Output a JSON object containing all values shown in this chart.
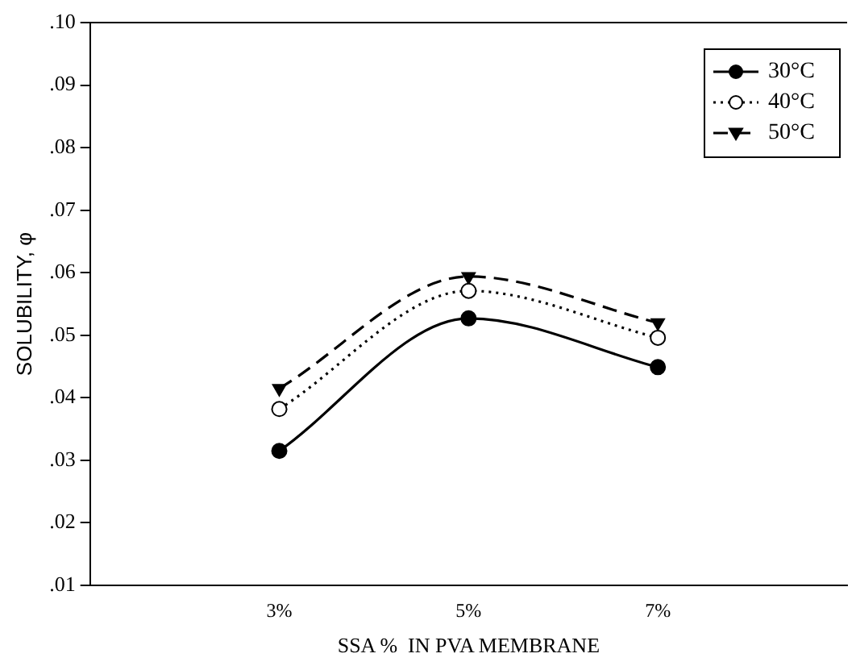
{
  "chart_data": {
    "type": "line",
    "xlabel": "SSA %  IN PVA MEMBRANE",
    "ylabel": "SOLUBILITY, φ",
    "x": [
      3,
      5,
      7
    ],
    "xlim": [
      1,
      9
    ],
    "xticks": [
      {
        "value": 3,
        "label": "3%"
      },
      {
        "value": 5,
        "label": "5%"
      },
      {
        "value": 7,
        "label": "7%"
      }
    ],
    "ylim": [
      0.01,
      0.1
    ],
    "yticks": [
      {
        "value": 0.01,
        "label": ".01"
      },
      {
        "value": 0.02,
        "label": ".02"
      },
      {
        "value": 0.03,
        "label": ".03"
      },
      {
        "value": 0.04,
        "label": ".04"
      },
      {
        "value": 0.05,
        "label": ".05"
      },
      {
        "value": 0.06,
        "label": ".06"
      },
      {
        "value": 0.07,
        "label": ".07"
      },
      {
        "value": 0.08,
        "label": ".08"
      },
      {
        "value": 0.09,
        "label": ".09"
      },
      {
        "value": 0.1,
        "label": ".10"
      }
    ],
    "grid": false,
    "legend": "top right",
    "series": [
      {
        "name": "30°C",
        "color": "#000000",
        "values": [
          0.0315,
          0.0527,
          0.0449
        ],
        "marker": "circle",
        "line_style": "solid"
      },
      {
        "name": "40°C",
        "color": "#000000",
        "values": [
          0.0382,
          0.0571,
          0.0496
        ],
        "marker": "open-circle",
        "line_style": "dotted"
      },
      {
        "name": "50°C",
        "color": "#000000",
        "values": [
          0.0415,
          0.0594,
          0.052
        ],
        "marker": "triangle-down",
        "line_style": "dashed"
      }
    ]
  }
}
